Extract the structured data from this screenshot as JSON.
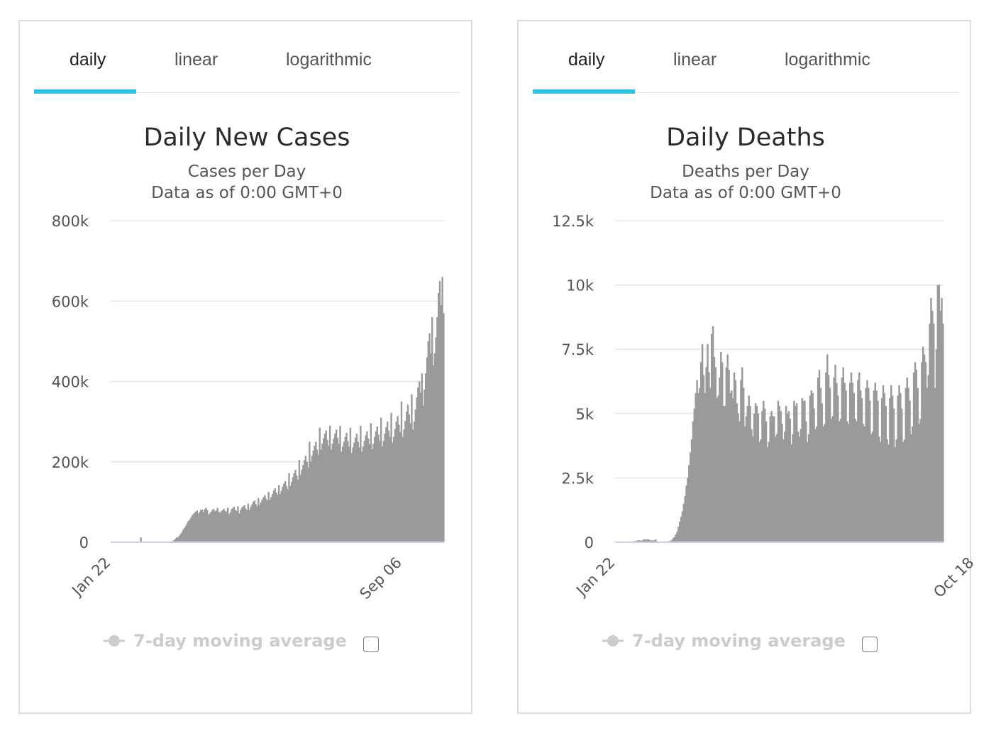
{
  "colors": {
    "accent": "#2dc2ea",
    "bar": "#9a9a9a",
    "legend_disabled": "#cccccc"
  },
  "charts": [
    {
      "tabs": [
        {
          "label": "daily",
          "active": true
        },
        {
          "label": "linear",
          "active": false
        },
        {
          "label": "logarithmic",
          "active": false
        }
      ],
      "legend": {
        "label": "7-day moving average",
        "checked": false
      }
    },
    {
      "tabs": [
        {
          "label": "daily",
          "active": true
        },
        {
          "label": "linear",
          "active": false
        },
        {
          "label": "logarithmic",
          "active": false
        }
      ],
      "legend": {
        "label": "7-day moving average",
        "checked": false
      }
    }
  ],
  "chart_data": [
    {
      "type": "bar",
      "title": "Daily New Cases",
      "subtitle": [
        "Cases per Day",
        "Data as of 0:00 GMT+0"
      ],
      "xlabel": "",
      "ylabel": "",
      "ylim": [
        0,
        800000
      ],
      "yticks": [
        0,
        200000,
        400000,
        600000,
        800000
      ],
      "ytick_labels": [
        "0",
        "200k",
        "400k",
        "600k",
        "800k"
      ],
      "x_start": "Jan 22",
      "xticks": [
        {
          "label": "Jan 22",
          "index": 0
        },
        {
          "label": "Sep 06",
          "index": 228
        }
      ],
      "grid": true,
      "legend_position": "bottom",
      "values": [
        0,
        0,
        0,
        0,
        0,
        0,
        0,
        0,
        0,
        0,
        0,
        0,
        0,
        0,
        0,
        0,
        0,
        0,
        0,
        0,
        0,
        0,
        0,
        12000,
        0,
        0,
        0,
        0,
        0,
        0,
        0,
        0,
        0,
        0,
        0,
        0,
        0,
        0,
        0,
        0,
        0,
        0,
        0,
        0,
        0,
        0,
        0,
        0,
        3000,
        5000,
        8000,
        12000,
        12000,
        16000,
        20000,
        24000,
        30000,
        35000,
        40000,
        46000,
        52000,
        55000,
        60000,
        66000,
        70000,
        73000,
        76000,
        79000,
        71000,
        75000,
        80000,
        81000,
        75000,
        82000,
        85000,
        80000,
        68000,
        72000,
        76000,
        80000,
        83000,
        77000,
        79000,
        85000,
        76000,
        73000,
        77000,
        80000,
        83000,
        78000,
        76000,
        86000,
        70000,
        74000,
        82000,
        85000,
        88000,
        80000,
        78000,
        89000,
        72000,
        80000,
        86000,
        89000,
        92000,
        84000,
        80000,
        96000,
        80000,
        88000,
        94000,
        100000,
        104000,
        95000,
        90000,
        110000,
        92000,
        100000,
        106000,
        112000,
        117000,
        108000,
        104000,
        125000,
        105000,
        112000,
        120000,
        128000,
        134000,
        124000,
        118000,
        142000,
        120000,
        128000,
        138000,
        146000,
        152000,
        140000,
        132000,
        172000,
        140000,
        150000,
        162000,
        172000,
        180000,
        166000,
        156000,
        205000,
        168000,
        180000,
        192000,
        205000,
        215000,
        200000,
        186000,
        250000,
        200000,
        215000,
        228000,
        240000,
        250000,
        230000,
        218000,
        285000,
        230000,
        245000,
        258000,
        270000,
        278000,
        255000,
        240000,
        290000,
        230000,
        245000,
        258000,
        270000,
        280000,
        260000,
        245000,
        290000,
        225000,
        238000,
        250000,
        262000,
        272000,
        252000,
        238000,
        285000,
        222000,
        236000,
        248000,
        260000,
        270000,
        250000,
        236000,
        290000,
        225000,
        238000,
        252000,
        266000,
        276000,
        258000,
        244000,
        296000,
        232000,
        245000,
        262000,
        276000,
        288000,
        268000,
        252000,
        310000,
        238000,
        252000,
        270000,
        286000,
        300000,
        278000,
        262000,
        322000,
        248000,
        262000,
        282000,
        300000,
        314000,
        292000,
        274000,
        350000,
        262000,
        280000,
        302000,
        325000,
        342000,
        318000,
        296000,
        368000,
        280000,
        300000,
        330000,
        360000,
        385000,
        400000,
        372000,
        420000,
        340000,
        380000,
        420000,
        460000,
        500000,
        520000,
        470000,
        560000,
        440000,
        470000,
        510000,
        560000,
        620000,
        650000,
        590000,
        660000,
        570000
      ],
      "annotations": []
    },
    {
      "type": "bar",
      "title": "Daily Deaths",
      "subtitle": [
        "Deaths per Day",
        "Data as of 0:00 GMT+0"
      ],
      "xlabel": "",
      "ylabel": "",
      "ylim": [
        0,
        12500
      ],
      "yticks": [
        0,
        2500,
        5000,
        7500,
        10000,
        12500
      ],
      "ytick_labels": [
        "0",
        "2.5k",
        "5k",
        "7.5k",
        "10k",
        "12.5k"
      ],
      "x_start": "Jan 22",
      "xticks": [
        {
          "label": "Jan 22",
          "index": 0
        },
        {
          "label": "Oct 18",
          "index": 270
        }
      ],
      "grid": true,
      "legend_position": "bottom",
      "values": [
        0,
        0,
        0,
        0,
        0,
        0,
        0,
        0,
        0,
        0,
        0,
        0,
        0,
        0,
        50,
        40,
        60,
        80,
        70,
        60,
        80,
        100,
        120,
        90,
        110,
        100,
        70,
        80,
        60,
        90,
        100,
        0,
        0,
        0,
        0,
        0,
        0,
        0,
        0,
        40,
        30,
        60,
        80,
        150,
        200,
        300,
        400,
        600,
        800,
        1000,
        1200,
        1500,
        1800,
        2200,
        2500,
        3000,
        3500,
        4000,
        4700,
        5200,
        5800,
        6300,
        5800,
        6000,
        7000,
        7700,
        6500,
        5800,
        6800,
        7700,
        6600,
        6000,
        8100,
        8400,
        7200,
        6800,
        5600,
        5700,
        6400,
        7400,
        7000,
        5300,
        5300,
        6800,
        7300,
        6700,
        5800,
        5900,
        5600,
        6600,
        6300,
        5400,
        5000,
        4700,
        6300,
        6800,
        6000,
        4500,
        4900,
        5300,
        5700,
        5300,
        4400,
        4100,
        5000,
        5400,
        5300,
        5000,
        3900,
        4000,
        5100,
        5500,
        5200,
        4700,
        3700,
        3900,
        4900,
        5100,
        4900,
        4900,
        4100,
        4200,
        5500,
        5300,
        5100,
        4600,
        4000,
        4300,
        5300,
        5000,
        5100,
        4800,
        3800,
        4200,
        5500,
        5300,
        5400,
        4300,
        4100,
        4400,
        5600,
        5500,
        5500,
        4700,
        3900,
        4200,
        5700,
        5900,
        5800,
        5200,
        4400,
        4500,
        6400,
        6700,
        6000,
        5400,
        4500,
        4600,
        6600,
        7300,
        6500,
        6000,
        4800,
        4900,
        6400,
        6900,
        6200,
        5700,
        4700,
        4800,
        6400,
        6800,
        6200,
        5900,
        4700,
        4600,
        6200,
        6600,
        6200,
        5800,
        4800,
        4700,
        6300,
        6600,
        5900,
        5600,
        4600,
        4500,
        6000,
        6300,
        6000,
        5500,
        4200,
        4300,
        5900,
        6200,
        5900,
        5500,
        4100,
        3900,
        5600,
        6100,
        5800,
        5300,
        4000,
        3800,
        5600,
        6100,
        5700,
        5200,
        3700,
        4000,
        5700,
        6100,
        5800,
        5200,
        3900,
        4000,
        6000,
        6400,
        6000,
        5500,
        4200,
        4500,
        6600,
        7000,
        6700,
        6000,
        4600,
        4800,
        7000,
        7600,
        7300,
        7000,
        6000,
        6500,
        8500,
        9500,
        9000,
        8500,
        6000,
        7500,
        10000,
        10000,
        9000,
        9500,
        8500
      ],
      "annotations": []
    }
  ]
}
